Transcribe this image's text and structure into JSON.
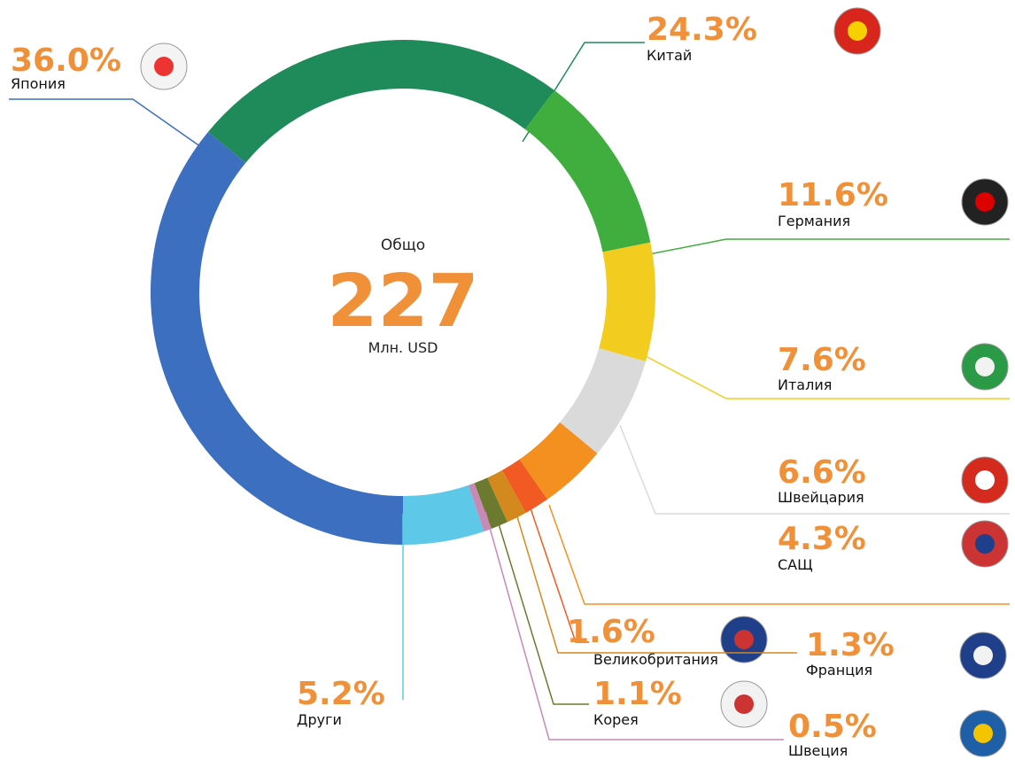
{
  "chart_data": {
    "type": "donut",
    "categories": [
      "Япония",
      "Китай",
      "Германия",
      "Италия",
      "Швейцария",
      "САЩ",
      "Великобритания",
      "Франция",
      "Корея",
      "Швеция",
      "Други"
    ],
    "values": [
      36.0,
      24.3,
      11.6,
      7.6,
      6.6,
      4.3,
      1.6,
      1.3,
      1.1,
      0.5,
      5.2
    ],
    "value_labels": [
      "36.0%",
      "24.3%",
      "11.6%",
      "7.6%",
      "6.6%",
      "4.3%",
      "1.6%",
      "1.3%",
      "1.1%",
      "0.5%",
      "5.2%"
    ],
    "colors": [
      "#3d6fc0",
      "#1f8a5a",
      "#3fae3f",
      "#f2cd1f",
      "#dadada",
      "#f39020",
      "#f15a22",
      "#d4891e",
      "#6b7a2e",
      "#c889b7",
      "#5ec8e8"
    ],
    "center": {
      "label": "Общо",
      "value": 227,
      "unit": "Млн. USD"
    }
  }
}
